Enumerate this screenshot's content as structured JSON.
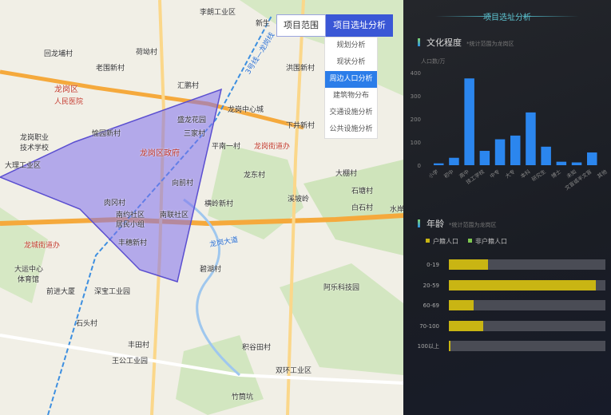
{
  "map": {
    "labels": [
      "龙岗区",
      "人民医院",
      "龙岗职业",
      "技术学校",
      "大理工业区",
      "龙岗区政府",
      "三家村",
      "平南一村",
      "龙岗街道办",
      "愉园新村",
      "老围新村",
      "汇鹏村",
      "盛龙花园",
      "向前村",
      "肉冈村",
      "南约社区",
      "居民小组",
      "南联社区",
      "丰穗新村",
      "龙城街道办",
      "大运中心",
      "体育馆",
      "前进大厦",
      "深宝工业园",
      "石头村",
      "王公工业园",
      "双环工业区",
      "积谷田村",
      "阿乐科技园",
      "白石村",
      "石塘村",
      "龙东村",
      "荷坳村",
      "龙岗中心城",
      "新生",
      "水岸",
      "洪围新村",
      "下井新村",
      "碧湖村",
      "横岭新村",
      "回龙埔村",
      "李朗工业区",
      "大棚村",
      "丰田村",
      "竹筒坑",
      "溪坡岭"
    ],
    "roads": [
      "3号线—龙岗线",
      "龙岗大道"
    ]
  },
  "menu": {
    "tabs": [
      {
        "label": "项目范围"
      },
      {
        "label": "项目选址分析"
      }
    ],
    "items": [
      {
        "label": "规划分析"
      },
      {
        "label": "现状分析"
      },
      {
        "label": "周边人口分析"
      },
      {
        "label": "建筑物分布"
      },
      {
        "label": "交通设施分析"
      },
      {
        "label": "公共设施分析"
      }
    ],
    "active_item": "周边人口分析"
  },
  "panel": {
    "title": "项目选址分析",
    "education": {
      "title": "文化程度",
      "note": "*统计范围为龙岗区",
      "ylabel": "人口数/万"
    },
    "age": {
      "title": "年龄",
      "note": "*统计范围为龙岗区",
      "legend": [
        "户籍人口",
        "非户籍人口"
      ]
    }
  },
  "chart_data": [
    {
      "type": "bar",
      "ylabel": "人口数/万",
      "ylim": [
        0,
        400
      ],
      "yticks": [
        0,
        100,
        200,
        300,
        400
      ],
      "categories": [
        "小学",
        "初中",
        "高中",
        "技工学校",
        "中专",
        "大专",
        "本科",
        "研究生",
        "博士",
        "未知",
        "文盲或半文盲",
        "其他"
      ],
      "values": [
        8,
        32,
        375,
        62,
        112,
        128,
        228,
        80,
        15,
        12,
        55,
        0
      ],
      "color": "#2b86ee",
      "grid": false
    },
    {
      "type": "bar",
      "orientation": "horizontal",
      "stacked": true,
      "categories": [
        "0-19",
        "20-59",
        "60-69",
        "70-100",
        "100以上"
      ],
      "series": [
        {
          "name": "户籍人口",
          "color": "#c9b513",
          "values_percent": [
            25,
            94,
            16,
            22,
            1
          ]
        },
        {
          "name": "非户籍人口",
          "color": "#7ec850"
        }
      ],
      "track_color": "#4a4c55"
    }
  ]
}
